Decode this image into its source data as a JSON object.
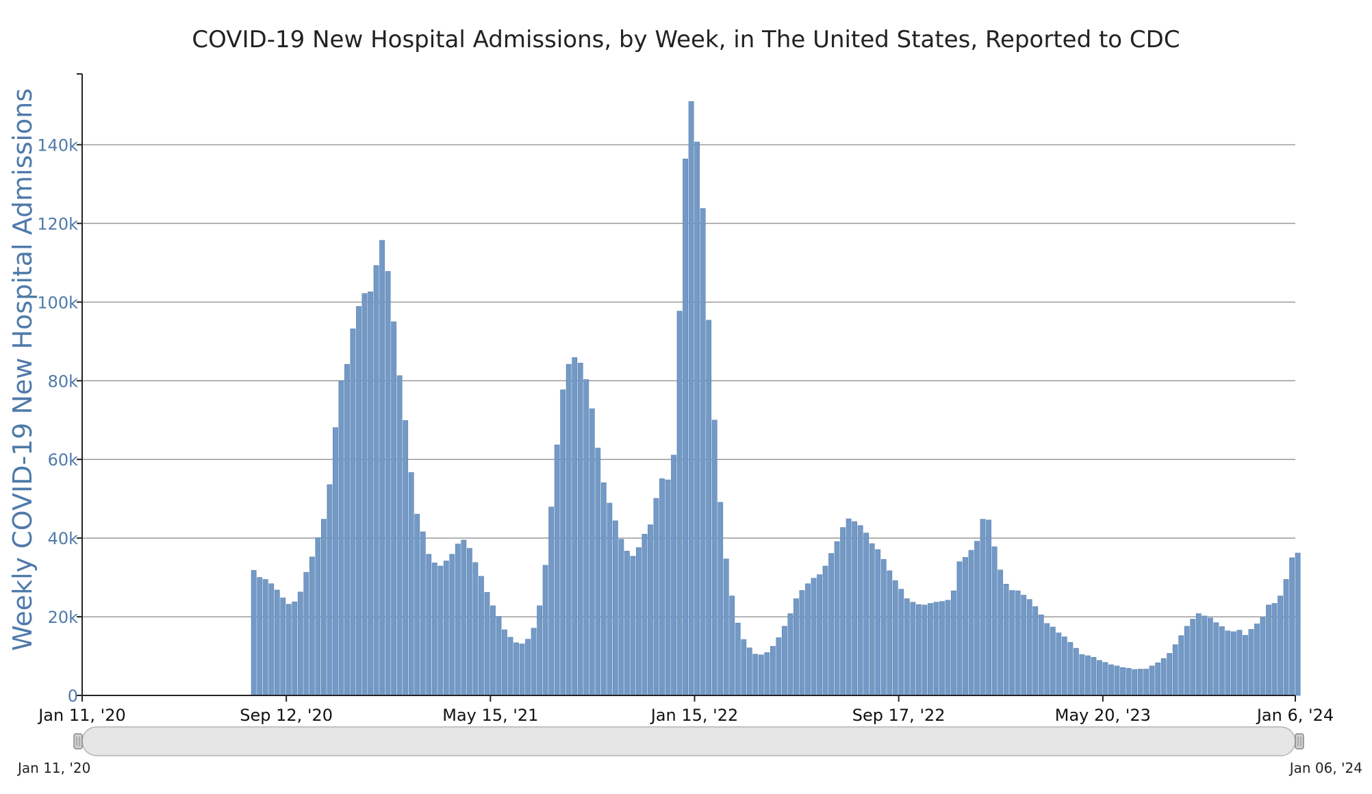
{
  "chart_data": {
    "type": "bar",
    "title": "COVID-19 New Hospital Admissions, by Week, in The United States, Reported to CDC",
    "ylabel": "Weekly COVID-19 New Hospital Admissions",
    "xlabel": "",
    "ylim": [
      0,
      158000
    ],
    "x_range": [
      "2020-01-11",
      "2024-01-06"
    ],
    "y_ticks": [
      {
        "value": 0,
        "label": "0"
      },
      {
        "value": 20000,
        "label": "20k"
      },
      {
        "value": 40000,
        "label": "40k"
      },
      {
        "value": 60000,
        "label": "60k"
      },
      {
        "value": 80000,
        "label": "80k"
      },
      {
        "value": 100000,
        "label": "100k"
      },
      {
        "value": 120000,
        "label": "120k"
      },
      {
        "value": 140000,
        "label": "140k"
      }
    ],
    "x_ticks": [
      {
        "date": "2020-01-11",
        "label": "Jan 11, '20"
      },
      {
        "date": "2020-09-12",
        "label": "Sep 12, '20"
      },
      {
        "date": "2021-05-15",
        "label": "May 15, '21"
      },
      {
        "date": "2022-01-15",
        "label": "Jan 15, '22"
      },
      {
        "date": "2022-09-17",
        "label": "Sep 17, '22"
      },
      {
        "date": "2023-05-20",
        "label": "May 20, '23"
      },
      {
        "date": "2024-01-06",
        "label": "Jan 6, '24"
      }
    ],
    "grid": true,
    "legend": "none",
    "bar_color": "#7399c6",
    "first_week": "2020-08-08",
    "values": [
      31800,
      30000,
      29500,
      28400,
      26800,
      24800,
      23200,
      23800,
      26300,
      31300,
      35200,
      40100,
      44800,
      53600,
      68100,
      80000,
      84200,
      93200,
      98900,
      102200,
      102600,
      109300,
      115700,
      107800,
      95000,
      81300,
      69900,
      56700,
      46100,
      41600,
      35900,
      33700,
      32900,
      34200,
      35900,
      38500,
      39500,
      37400,
      33800,
      30300,
      26200,
      22800,
      20100,
      16700,
      14800,
      13400,
      13100,
      14300,
      17100,
      22800,
      33100,
      47900,
      63700,
      77700,
      84200,
      85900,
      84500,
      80300,
      72900,
      62900,
      54100,
      48900,
      44400,
      39700,
      36700,
      35400,
      37600,
      41000,
      43400,
      50100,
      55100,
      54800,
      61100,
      97700,
      136400,
      151000,
      140700,
      123800,
      95400,
      70000,
      49100,
      34700,
      25300,
      18400,
      14200,
      12100,
      10500,
      10300,
      10900,
      12500,
      14700,
      17600,
      20800,
      24600,
      26700,
      28400,
      29800,
      30700,
      32900,
      36100,
      39100,
      42700,
      44900,
      44200,
      43200,
      41300,
      38600,
      37100,
      34600,
      31700,
      29200,
      27000,
      24600,
      23700,
      23100,
      23000,
      23400,
      23700,
      23900,
      24200,
      26600,
      34000,
      35100,
      36900,
      39200,
      44800,
      44600,
      37800,
      31900,
      28300,
      26700,
      26600,
      25500,
      24400,
      22600,
      20500,
      18300,
      17400,
      15900,
      14900,
      13500,
      12000,
      10400,
      10100,
      9700,
      8900,
      8400,
      7800,
      7500,
      7100,
      6900,
      6600,
      6700,
      6700,
      7500,
      8300,
      9400,
      10700,
      12900,
      15200,
      17600,
      19400,
      20800,
      20200,
      19700,
      18500,
      17500,
      16400,
      16200,
      16600,
      15300,
      16800,
      18200,
      19800,
      23000,
      23400,
      25300,
      29500,
      35000,
      36200
    ]
  },
  "range_slider": {
    "start_label": "Jan 11, '20",
    "end_label": "Jan 06, '24"
  }
}
